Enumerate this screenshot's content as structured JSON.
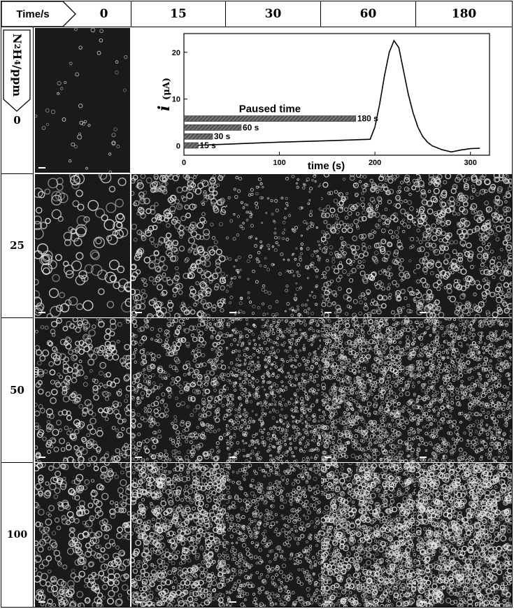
{
  "header": {
    "corner_label": "Time/s",
    "columns": [
      "0",
      "15",
      "30",
      "60",
      "180"
    ]
  },
  "row_header_label": "N2H4/ppm",
  "row_header_parts": {
    "n": "N",
    "sub1": "2",
    "h": "H",
    "sub2": "4",
    "unit": "/ppm"
  },
  "rows": [
    "0",
    "25",
    "50",
    "100"
  ],
  "inset_chart": {
    "chart_data": {
      "type": "line",
      "ylabel_symbol": "i",
      "ylabel_unit": "(μA)",
      "xlabel": "time (s)",
      "x_ticks": [
        0,
        100,
        200,
        300
      ],
      "y_ticks": [
        0,
        10,
        20
      ],
      "xlim": [
        0,
        320
      ],
      "ylim": [
        -2,
        24
      ],
      "series": [
        {
          "x": [
            0,
            50,
            100,
            150,
            195,
            200,
            205,
            210,
            215,
            220,
            225,
            230,
            235,
            240,
            245,
            250,
            255,
            260,
            270,
            280,
            290,
            300,
            310
          ],
          "y": [
            0,
            0.4,
            0.8,
            1.1,
            1.4,
            4,
            9,
            15,
            20,
            22.5,
            21,
            16,
            11,
            7,
            4,
            2,
            0.8,
            0,
            -0.8,
            -1.3,
            -0.9,
            -0.6,
            -0.5
          ]
        }
      ],
      "annotation_title": "Paused time",
      "pause_bars": [
        {
          "label": "15 s",
          "x_end": 15
        },
        {
          "label": "30 s",
          "x_end": 30
        },
        {
          "label": "60 s",
          "x_end": 60
        },
        {
          "label": "180 s",
          "x_end": 180
        }
      ]
    }
  },
  "panel_colors": {
    "background": "#1a1a1a",
    "particle": "#e8e8e8"
  }
}
